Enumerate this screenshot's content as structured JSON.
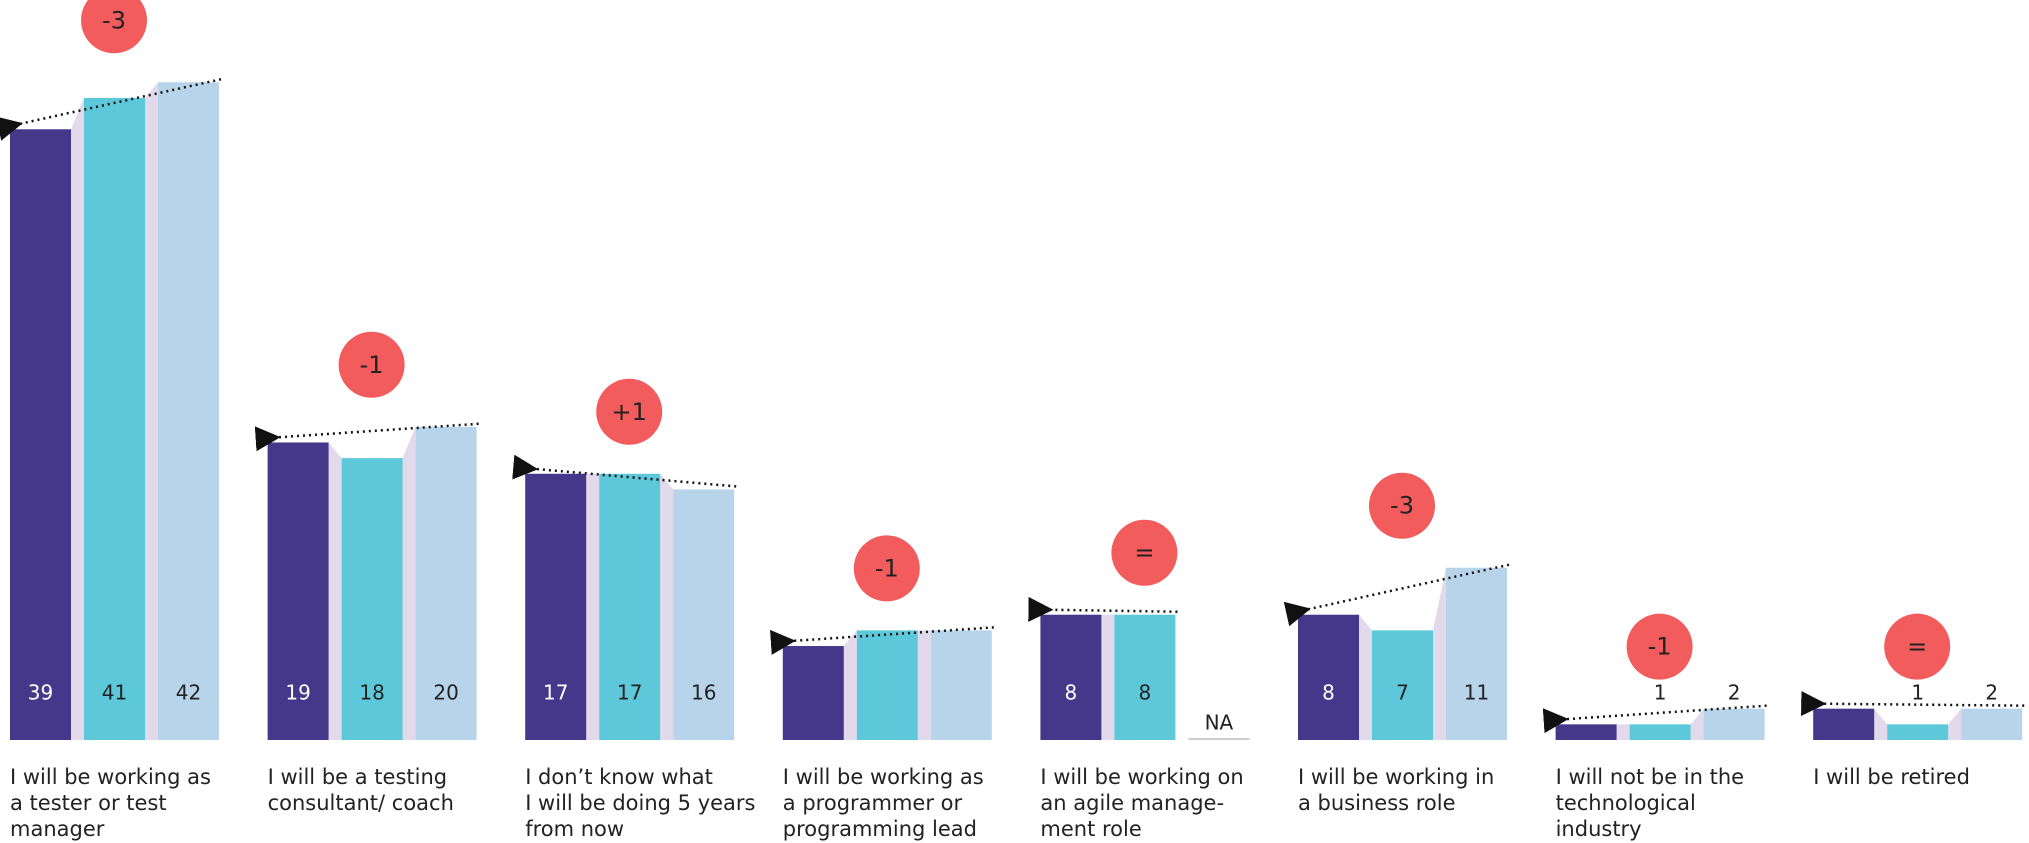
{
  "chart_data": {
    "type": "bar",
    "categories": [
      "I will be working as\na tester or test\nmanager",
      "I will be a testing\nconsultant/ coach",
      "I don’t know what\nI will be doing 5 years\nfrom now",
      "I will be working as\na programmer or\nprogramming lead",
      "I will be working on\nan agile manage-\nment role",
      "I will be working in\na business role",
      "I will not be in the\ntechnological\nindustry",
      "I will be retired"
    ],
    "series": [
      {
        "color": "#45388a",
        "values": [
          39,
          19,
          17,
          6,
          8,
          8,
          1,
          2
        ],
        "value_labels": [
          "39",
          "19",
          "17",
          null,
          "8",
          "8",
          "1",
          "2"
        ]
      },
      {
        "color": "#5ec8db",
        "values": [
          41,
          18,
          17,
          7,
          8,
          7,
          1,
          1
        ],
        "value_labels": [
          "41",
          "18",
          "17",
          null,
          "8",
          "7",
          "1",
          "1"
        ]
      },
      {
        "color": "#b8d4ea",
        "values": [
          42,
          20,
          16,
          7,
          null,
          11,
          2,
          2
        ],
        "value_labels": [
          "42",
          "20",
          "16",
          null,
          "NA",
          "11",
          "2",
          "2"
        ]
      }
    ],
    "annotations": [
      "-3",
      "-1",
      "+1",
      "-1",
      "=",
      "-3",
      "-1",
      "="
    ],
    "annotation_color": "#f25c5c",
    "connector_color": "#e2d9ea"
  }
}
